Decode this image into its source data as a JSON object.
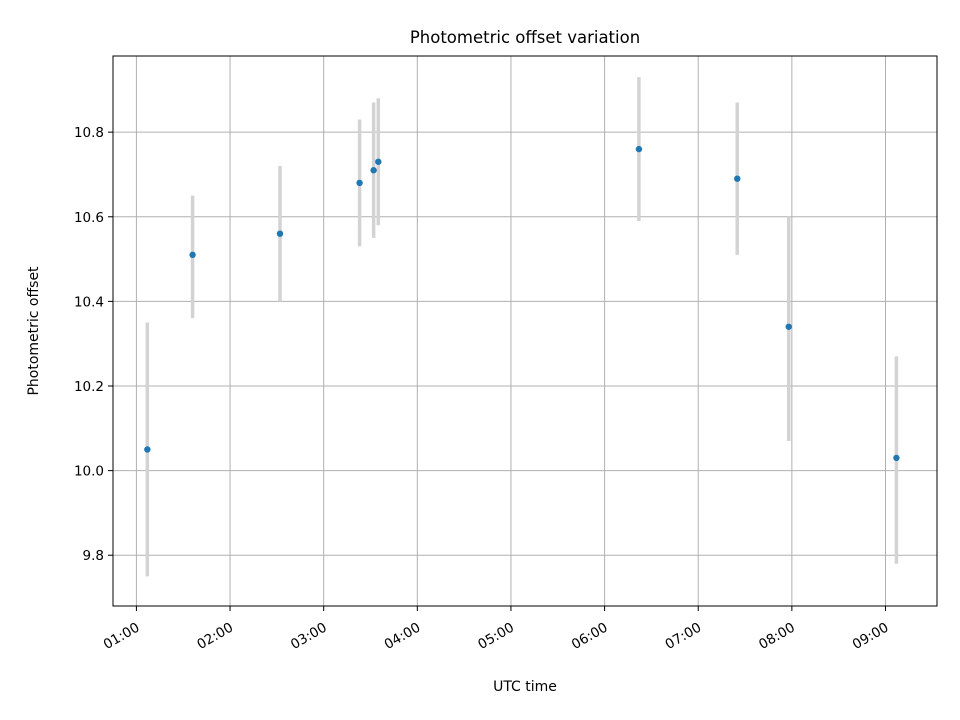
{
  "chart_data": {
    "type": "scatter",
    "title": "Photometric offset variation",
    "xlabel": "UTC time",
    "ylabel": "Photometric offset",
    "x_axis": {
      "kind": "time",
      "range": [
        "00:45",
        "09:33"
      ],
      "ticks": [
        "01:00",
        "02:00",
        "03:00",
        "04:00",
        "05:00",
        "06:00",
        "07:00",
        "08:00",
        "09:00"
      ]
    },
    "y_axis": {
      "range": [
        9.68,
        10.98
      ],
      "ticks": [
        "9.8",
        "10.0",
        "10.2",
        "10.4",
        "10.6",
        "10.8"
      ]
    },
    "grid": true,
    "colors": {
      "point": "#1f77b4",
      "error_bar": "#d3d3d3"
    },
    "points": [
      {
        "x": "01:07",
        "y": 10.05,
        "low": 9.75,
        "high": 10.35
      },
      {
        "x": "01:36",
        "y": 10.51,
        "low": 10.36,
        "high": 10.65
      },
      {
        "x": "02:32",
        "y": 10.56,
        "low": 10.4,
        "high": 10.72
      },
      {
        "x": "03:23",
        "y": 10.68,
        "low": 10.53,
        "high": 10.83
      },
      {
        "x": "03:32",
        "y": 10.71,
        "low": 10.55,
        "high": 10.87
      },
      {
        "x": "03:35",
        "y": 10.73,
        "low": 10.58,
        "high": 10.88
      },
      {
        "x": "06:22",
        "y": 10.76,
        "low": 10.59,
        "high": 10.93
      },
      {
        "x": "07:25",
        "y": 10.69,
        "low": 10.51,
        "high": 10.87
      },
      {
        "x": "07:58",
        "y": 10.34,
        "low": 10.07,
        "high": 10.6
      },
      {
        "x": "09:07",
        "y": 10.03,
        "low": 9.78,
        "high": 10.27
      }
    ]
  }
}
